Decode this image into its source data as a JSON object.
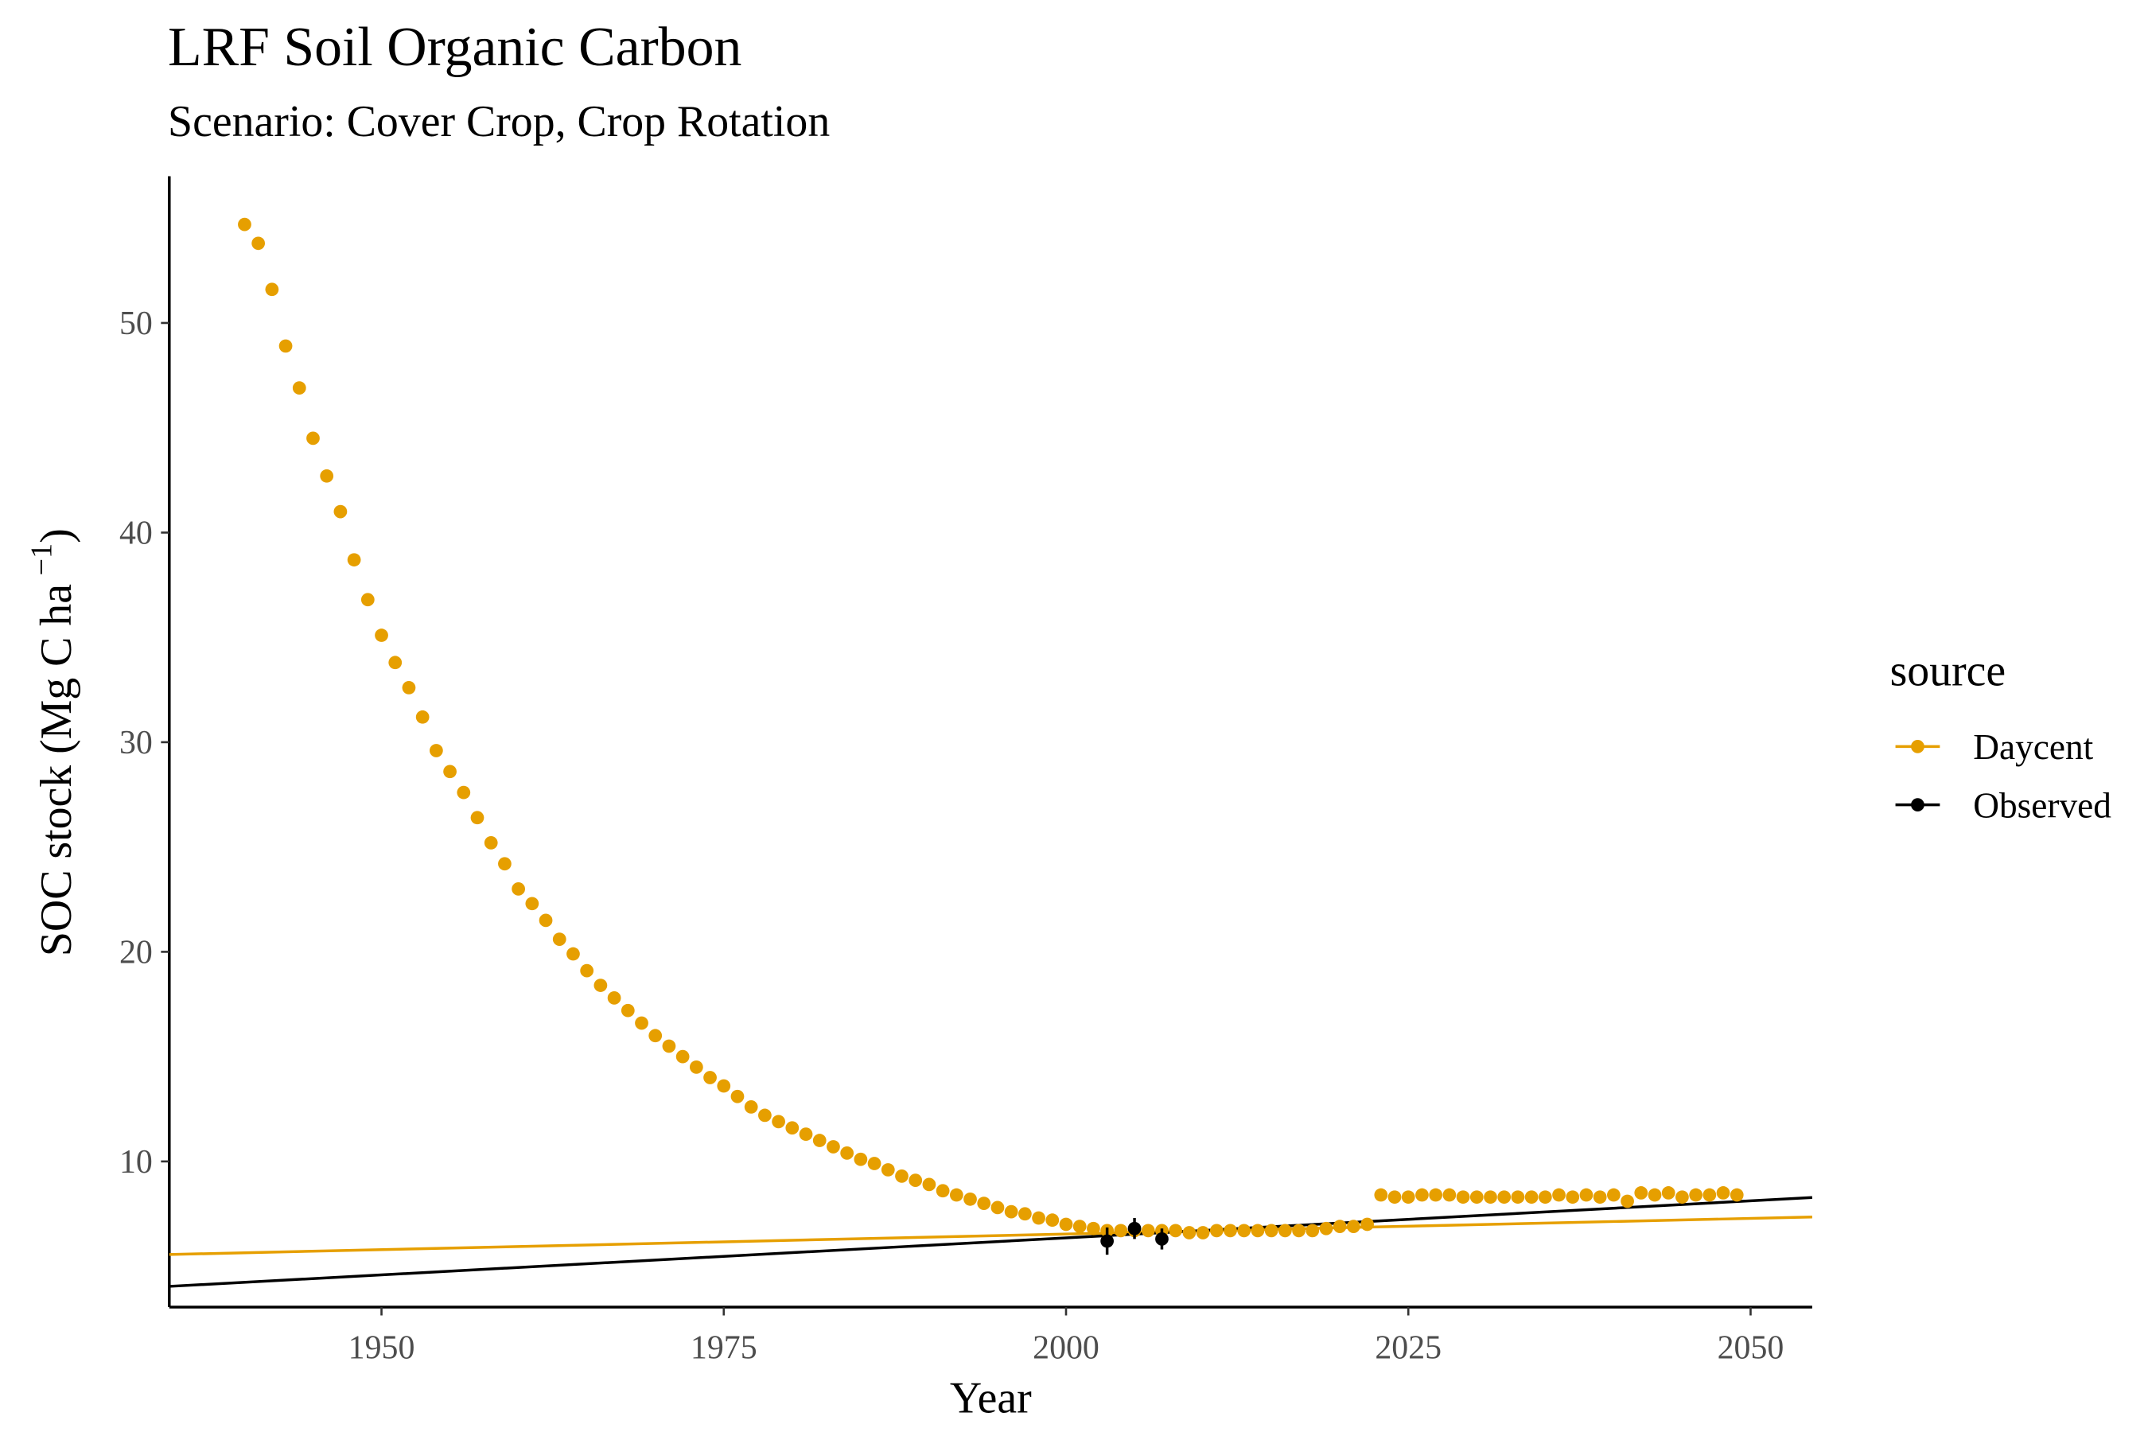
{
  "chart_data": {
    "type": "scatter",
    "title": "LRF Soil Organic Carbon",
    "subtitle": "Scenario: Cover Crop, Crop Rotation",
    "x_label": "Year",
    "y_label": "SOC stock (Mg C ha",
    "y_label_superscript": "−1",
    "y_label_suffix": ")",
    "legend_title": "source",
    "xlim": [
      1934.5,
      2054.5
    ],
    "xticks": [
      1950,
      1975,
      2000,
      2025,
      2050
    ],
    "ylim": [
      3.05,
      57.0
    ],
    "yticks": [
      10,
      20,
      30,
      40,
      50
    ],
    "series": [
      {
        "name": "Daycent",
        "color": "#E69F00",
        "x": [
          1940,
          1941,
          1942,
          1943,
          1944,
          1945,
          1946,
          1947,
          1948,
          1949,
          1950,
          1951,
          1952,
          1953,
          1954,
          1955,
          1956,
          1957,
          1958,
          1959,
          1960,
          1961,
          1962,
          1963,
          1964,
          1965,
          1966,
          1967,
          1968,
          1969,
          1970,
          1971,
          1972,
          1973,
          1974,
          1975,
          1976,
          1977,
          1978,
          1979,
          1980,
          1981,
          1982,
          1983,
          1984,
          1985,
          1986,
          1987,
          1988,
          1989,
          1990,
          1991,
          1992,
          1993,
          1994,
          1995,
          1996,
          1997,
          1998,
          1999,
          2000,
          2001,
          2002,
          2003,
          2004,
          2005,
          2006,
          2007,
          2008,
          2009,
          2010,
          2011,
          2012,
          2013,
          2014,
          2015,
          2016,
          2017,
          2018,
          2019,
          2020,
          2021,
          2022,
          2023,
          2024,
          2025,
          2026,
          2027,
          2028,
          2029,
          2030,
          2031,
          2032,
          2033,
          2034,
          2035,
          2036,
          2037,
          2038,
          2039,
          2040,
          2041,
          2042,
          2043,
          2044,
          2045,
          2046,
          2047,
          2048,
          2049
        ],
        "values": [
          54.7,
          53.8,
          51.6,
          48.9,
          46.9,
          44.5,
          42.7,
          41.0,
          38.7,
          36.8,
          35.1,
          33.8,
          32.6,
          31.2,
          29.6,
          28.6,
          27.6,
          26.4,
          25.2,
          24.2,
          23.0,
          22.3,
          21.5,
          20.6,
          19.9,
          19.1,
          18.4,
          17.8,
          17.2,
          16.6,
          16.0,
          15.5,
          15.0,
          14.5,
          14.0,
          13.6,
          13.1,
          12.6,
          12.2,
          11.9,
          11.6,
          11.3,
          11.0,
          10.7,
          10.4,
          10.1,
          9.9,
          9.6,
          9.3,
          9.1,
          8.9,
          8.6,
          8.4,
          8.2,
          8.0,
          7.8,
          7.6,
          7.5,
          7.3,
          7.2,
          7.0,
          6.9,
          6.8,
          6.7,
          6.7,
          6.7,
          6.7,
          6.7,
          6.7,
          6.6,
          6.6,
          6.7,
          6.7,
          6.7,
          6.7,
          6.7,
          6.7,
          6.7,
          6.7,
          6.8,
          6.9,
          6.9,
          7.0,
          8.4,
          8.3,
          8.3,
          8.4,
          8.4,
          8.4,
          8.3,
          8.3,
          8.3,
          8.3,
          8.3,
          8.3,
          8.3,
          8.4,
          8.3,
          8.4,
          8.3,
          8.4,
          8.1,
          8.5,
          8.4,
          8.5,
          8.3,
          8.4,
          8.4,
          8.5,
          8.4
        ],
        "trend": {
          "x": [
            1934.5,
            2054.5
          ],
          "values": [
            5.56,
            7.35
          ]
        }
      },
      {
        "name": "Observed",
        "color": "#000000",
        "x": [
          2003,
          2005,
          2007
        ],
        "values": [
          6.2,
          6.8,
          6.3
        ],
        "errors": [
          0.65,
          0.5,
          0.5
        ],
        "trend": {
          "x": [
            1934.5,
            2054.5
          ],
          "values": [
            4.04,
            8.28
          ]
        }
      }
    ]
  }
}
